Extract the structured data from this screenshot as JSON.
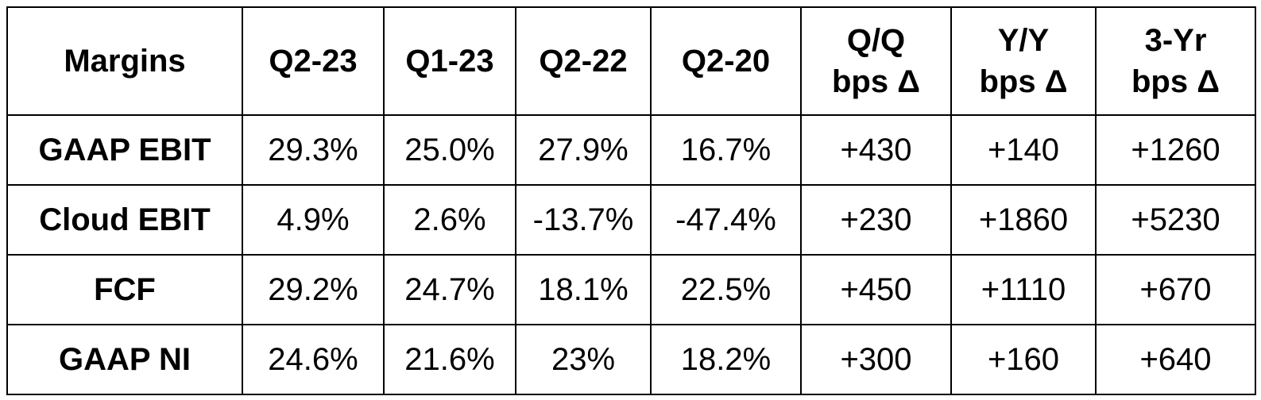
{
  "chart_data": {
    "type": "table",
    "columns": [
      {
        "lines": [
          "Margins"
        ]
      },
      {
        "lines": [
          "Q2-23"
        ]
      },
      {
        "lines": [
          "Q1-23"
        ]
      },
      {
        "lines": [
          "Q2-22"
        ]
      },
      {
        "lines": [
          "Q2-20"
        ]
      },
      {
        "lines": [
          "Q/Q",
          "bps Δ"
        ]
      },
      {
        "lines": [
          "Y/Y",
          "bps Δ"
        ]
      },
      {
        "lines": [
          "3-Yr",
          "bps Δ"
        ]
      }
    ],
    "rows": [
      {
        "label": "GAAP EBIT",
        "cells": [
          "29.3%",
          "25.0%",
          "27.9%",
          "16.7%",
          "+430",
          "+140",
          "+1260"
        ]
      },
      {
        "label": "Cloud EBIT",
        "cells": [
          "4.9%",
          "2.6%",
          "-13.7%",
          "-47.4%",
          "+230",
          "+1860",
          "+5230"
        ]
      },
      {
        "label": "FCF",
        "cells": [
          "29.2%",
          "24.7%",
          "18.1%",
          "22.5%",
          "+450",
          "+1110",
          "+670"
        ]
      },
      {
        "label": "GAAP NI",
        "cells": [
          "24.6%",
          "21.6%",
          "23%",
          "18.2%",
          "+300",
          "+160",
          "+640"
        ]
      }
    ]
  }
}
